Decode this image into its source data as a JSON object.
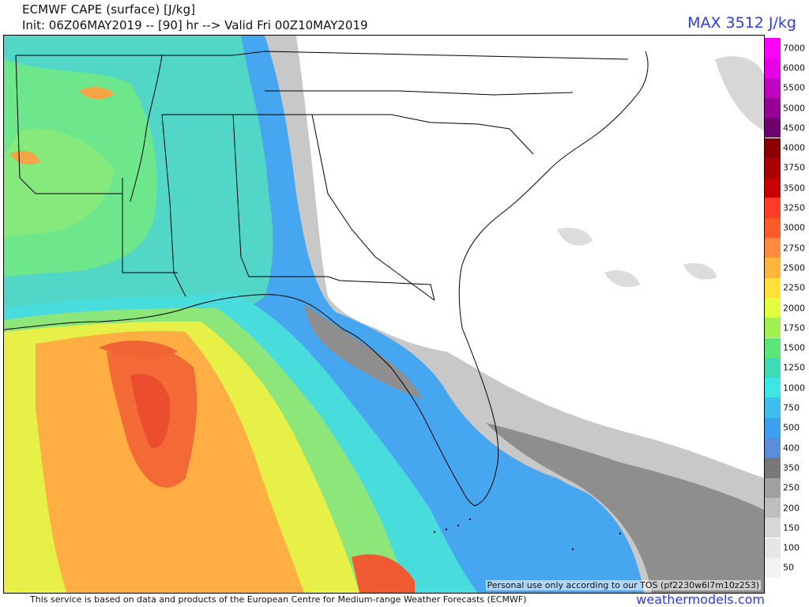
{
  "title": "ECMWF CAPE (surface) [J/kg]",
  "subtitle": "Init: 06Z06MAY2019 -- [90] hr --> Valid Fri 00Z10MAY2019",
  "max_label": "MAX 3512 J/kg",
  "tos_note": "Personal use only according to our TOS (pf2230w6l7m10z253)",
  "footer_text": "This service is based on data and products of the European Centre for Medium-range Weather Forecasts (ECMWF)",
  "watermark": "weathermodels.com",
  "colorbar": [
    {
      "label": "7000",
      "color": "#ff00ff"
    },
    {
      "label": "6000",
      "color": "#e800e8"
    },
    {
      "label": "5500",
      "color": "#c000c0"
    },
    {
      "label": "5000",
      "color": "#960096"
    },
    {
      "label": "4500",
      "color": "#6e006e"
    },
    {
      "label": "4000",
      "color": "#8c0000"
    },
    {
      "label": "3750",
      "color": "#aa0000"
    },
    {
      "label": "3500",
      "color": "#c80000"
    },
    {
      "label": "3250",
      "color": "#ff3c28"
    },
    {
      "label": "3000",
      "color": "#ff5a28"
    },
    {
      "label": "2750",
      "color": "#ff8c3c"
    },
    {
      "label": "2500",
      "color": "#ffb43c"
    },
    {
      "label": "2250",
      "color": "#ffe13c"
    },
    {
      "label": "2000",
      "color": "#e1ff3c"
    },
    {
      "label": "1750",
      "color": "#a0f050"
    },
    {
      "label": "1500",
      "color": "#5ae678"
    },
    {
      "label": "1250",
      "color": "#3cdcb4"
    },
    {
      "label": "1000",
      "color": "#3ce6e6"
    },
    {
      "label": "750",
      "color": "#3cbef0"
    },
    {
      "label": "500",
      "color": "#3ca0f0"
    },
    {
      "label": "400",
      "color": "#5a8cdc"
    },
    {
      "label": "350",
      "color": "#787878"
    },
    {
      "label": "250",
      "color": "#a0a0a0"
    },
    {
      "label": "200",
      "color": "#bebebe"
    },
    {
      "label": "150",
      "color": "#d7d7d7"
    },
    {
      "label": "100",
      "color": "#e6e6e6"
    },
    {
      "label": "50",
      "color": "#f2f2f2"
    }
  ],
  "palette": {
    "title_blue": "#2a3cf0",
    "land_border": "#000000",
    "gray_low": "#c8c8c8",
    "gray_mid": "#8c8c8c",
    "blue_low": "#4b9ef0",
    "cyan": "#48dcdc",
    "green": "#6ee68c",
    "yellow": "#e6f046",
    "orange": "#ff9b3c",
    "red": "#f0502d"
  }
}
